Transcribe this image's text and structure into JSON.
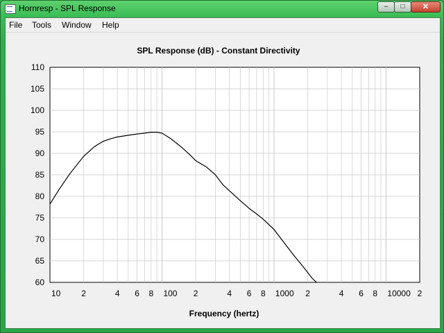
{
  "window": {
    "title": "Hornresp - SPL Response"
  },
  "controls": {
    "minimize": "–",
    "maximize": "□",
    "close": "✕"
  },
  "menu": [
    "File",
    "Tools",
    "Window",
    "Help"
  ],
  "icons": {
    "app": "hornresp-app-icon"
  },
  "colors": {
    "frame": "#3cbd55",
    "plot_bg": "#ffffff",
    "grid": "#c8c8c8",
    "curve": "#000000"
  },
  "chart_data": {
    "type": "line",
    "title": "SPL Response (dB) - Constant Directivity",
    "xlabel": "Frequency (hertz)",
    "ylabel": "",
    "xscale": "log",
    "xlim": [
      10,
      20000
    ],
    "ylim": [
      60,
      110
    ],
    "grid": true,
    "x_ticks": [
      {
        "value": 10,
        "label": "10"
      },
      {
        "value": 20,
        "label": "2"
      },
      {
        "value": 40,
        "label": "4"
      },
      {
        "value": 60,
        "label": "6"
      },
      {
        "value": 80,
        "label": "8"
      },
      {
        "value": 100,
        "label": "100"
      },
      {
        "value": 200,
        "label": "2"
      },
      {
        "value": 400,
        "label": "4"
      },
      {
        "value": 600,
        "label": "6"
      },
      {
        "value": 800,
        "label": "8"
      },
      {
        "value": 1000,
        "label": "1000"
      },
      {
        "value": 2000,
        "label": "2"
      },
      {
        "value": 4000,
        "label": "4"
      },
      {
        "value": 6000,
        "label": "6"
      },
      {
        "value": 8000,
        "label": "8"
      },
      {
        "value": 10000,
        "label": "10000"
      },
      {
        "value": 20000,
        "label": "2"
      }
    ],
    "y_ticks": [
      60,
      65,
      70,
      75,
      80,
      85,
      90,
      95,
      100,
      105,
      110
    ],
    "series": [
      {
        "x": [
          10,
          12,
          15,
          20,
          25,
          30,
          35,
          40,
          50,
          60,
          70,
          80,
          90,
          100,
          120,
          150,
          180,
          200,
          250,
          300,
          350,
          400,
          500,
          600,
          700,
          800,
          1000,
          1200,
          1500,
          1800,
          2000,
          2200,
          2400
        ],
        "y": [
          78.2,
          81.5,
          85.2,
          89.3,
          91.6,
          92.8,
          93.4,
          93.8,
          94.2,
          94.5,
          94.7,
          94.9,
          94.9,
          94.7,
          93.4,
          91.4,
          89.5,
          88.3,
          86.8,
          85.0,
          82.7,
          81.3,
          79.0,
          77.2,
          75.9,
          74.7,
          72.3,
          69.6,
          66.3,
          63.8,
          62.3,
          60.9,
          60.0
        ]
      }
    ]
  }
}
